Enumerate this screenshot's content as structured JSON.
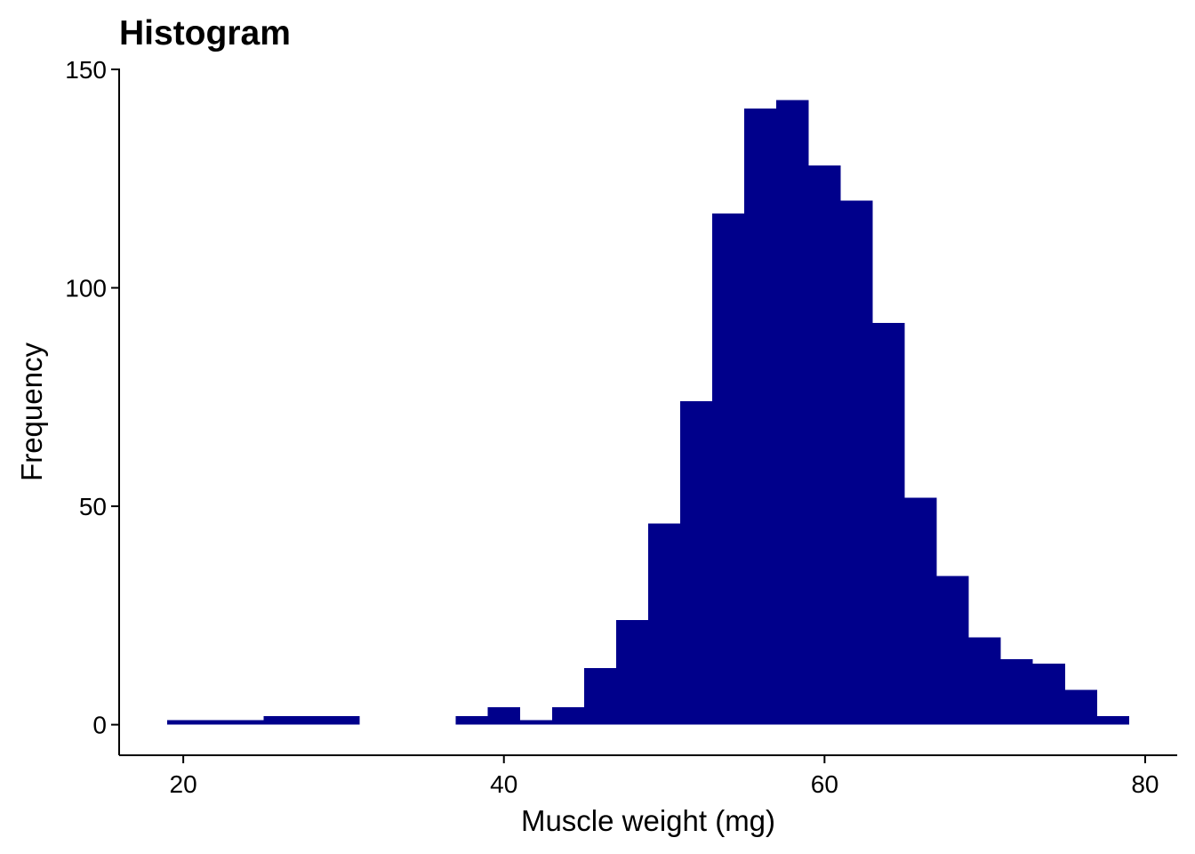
{
  "chart_data": {
    "type": "bar",
    "title": "Histogram",
    "xlabel": "Muscle weight (mg)",
    "ylabel": "Frequency",
    "bin_width": 2,
    "bins": [
      {
        "start": 19,
        "end": 21,
        "count": 1
      },
      {
        "start": 21,
        "end": 23,
        "count": 1
      },
      {
        "start": 23,
        "end": 25,
        "count": 1
      },
      {
        "start": 25,
        "end": 27,
        "count": 2
      },
      {
        "start": 27,
        "end": 29,
        "count": 2
      },
      {
        "start": 29,
        "end": 31,
        "count": 2
      },
      {
        "start": 31,
        "end": 33,
        "count": 0
      },
      {
        "start": 33,
        "end": 35,
        "count": 0
      },
      {
        "start": 35,
        "end": 37,
        "count": 0
      },
      {
        "start": 37,
        "end": 39,
        "count": 2
      },
      {
        "start": 39,
        "end": 41,
        "count": 4
      },
      {
        "start": 41,
        "end": 43,
        "count": 1
      },
      {
        "start": 43,
        "end": 45,
        "count": 4
      },
      {
        "start": 45,
        "end": 47,
        "count": 13
      },
      {
        "start": 47,
        "end": 49,
        "count": 24
      },
      {
        "start": 49,
        "end": 51,
        "count": 46
      },
      {
        "start": 51,
        "end": 53,
        "count": 74
      },
      {
        "start": 53,
        "end": 55,
        "count": 117
      },
      {
        "start": 55,
        "end": 57,
        "count": 141
      },
      {
        "start": 57,
        "end": 59,
        "count": 143
      },
      {
        "start": 59,
        "end": 61,
        "count": 128
      },
      {
        "start": 61,
        "end": 63,
        "count": 120
      },
      {
        "start": 63,
        "end": 65,
        "count": 92
      },
      {
        "start": 65,
        "end": 67,
        "count": 52
      },
      {
        "start": 67,
        "end": 69,
        "count": 34
      },
      {
        "start": 69,
        "end": 71,
        "count": 20
      },
      {
        "start": 71,
        "end": 73,
        "count": 15
      },
      {
        "start": 73,
        "end": 75,
        "count": 14
      },
      {
        "start": 75,
        "end": 77,
        "count": 8
      },
      {
        "start": 77,
        "end": 79,
        "count": 2
      }
    ],
    "xlim": [
      16,
      82
    ],
    "ylim": [
      -7,
      150
    ],
    "x_ticks": [
      20,
      40,
      60,
      80
    ],
    "y_ticks": [
      0,
      50,
      100,
      150
    ],
    "bar_color": "#00008B",
    "grid": false,
    "legend": "none"
  }
}
